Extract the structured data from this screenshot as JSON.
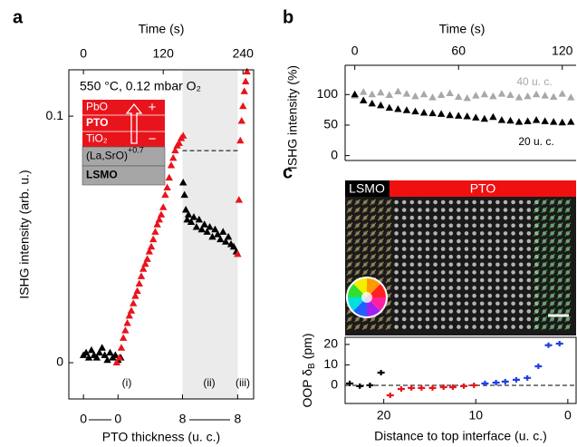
{
  "panel_labels": [
    "a",
    "b",
    "c"
  ],
  "micrograph": {
    "labels": [
      "LSMO",
      "PTO"
    ]
  },
  "chart_data": [
    {
      "type": "scatter",
      "xlabel": "Time (s)",
      "x2label": "PTO thickness (u. c.)",
      "ylabel": "ISHG intensity (arb. u.)",
      "xlim": [
        -22,
        256
      ],
      "xticks": [
        0,
        120,
        240
      ],
      "x2ticks": [
        {
          "value": 0,
          "label": "0"
        },
        {
          "value": 52,
          "label": "0"
        },
        {
          "value": 149,
          "label": "8"
        },
        {
          "value": 232,
          "label": "8"
        }
      ],
      "ylim": [
        -0.0147,
        0.1188
      ],
      "yticks": [
        0,
        0.1
      ],
      "marker": "triangle",
      "annotations": [
        "550 °C, 0.12 mbar O₂",
        "(i)",
        "(ii)",
        "(iii)"
      ],
      "shaded_region": [
        149,
        232
      ],
      "reference_line": {
        "value": 0.086,
        "xrange": [
          149,
          232
        ]
      },
      "layer_stack": [
        "PbO",
        "PTO",
        "TiO₂",
        "(La,SrO)",
        "LSMO"
      ],
      "layer_stack_sup": "+0.7",
      "polarization_signs": [
        "+",
        "−"
      ],
      "series": [
        {
          "color": "#000000",
          "x": [
            0,
            4,
            8,
            12,
            16,
            20,
            24,
            28,
            32,
            36,
            40,
            44,
            48,
            52,
            56,
            150,
            152,
            154,
            156,
            158,
            162,
            166,
            170,
            174,
            178,
            182,
            186,
            190,
            194,
            198,
            202,
            206,
            210,
            214,
            218,
            222,
            226,
            230
          ],
          "values": [
            0.003,
            0.004,
            0.002,
            0.005,
            0.003,
            0.002,
            0.004,
            0.006,
            0.003,
            0.001,
            0.004,
            0.002,
            0.003,
            0.001,
            0.002,
            0.073,
            0.068,
            0.062,
            0.058,
            0.06,
            0.057,
            0.059,
            0.055,
            0.058,
            0.054,
            0.056,
            0.053,
            0.055,
            0.051,
            0.054,
            0.052,
            0.05,
            0.053,
            0.049,
            0.051,
            0.048,
            0.047,
            0.045
          ]
        },
        {
          "color": "#e8141c",
          "x": [
            50,
            54,
            57,
            60,
            63,
            66,
            69,
            72,
            75,
            78,
            81,
            84,
            87,
            90,
            93,
            96,
            99,
            102,
            105,
            108,
            111,
            114,
            117,
            120,
            123,
            126,
            129,
            132,
            135,
            138,
            141,
            144,
            147,
            150,
            232,
            234,
            236,
            238,
            240,
            242,
            244,
            246
          ],
          "values": [
            0.0,
            0.002,
            0.006,
            0.01,
            0.013,
            0.016,
            0.019,
            0.021,
            0.024,
            0.027,
            0.029,
            0.032,
            0.035,
            0.038,
            0.04,
            0.042,
            0.045,
            0.047,
            0.05,
            0.053,
            0.056,
            0.058,
            0.06,
            0.063,
            0.068,
            0.071,
            0.075,
            0.08,
            0.083,
            0.086,
            0.088,
            0.089,
            0.091,
            0.092,
            0.044,
            0.066,
            0.09,
            0.098,
            0.104,
            0.11,
            0.114,
            0.118
          ]
        }
      ]
    },
    {
      "type": "line",
      "xlabel": "Time (s)",
      "ylabel": "ISHG intensity (%)",
      "marker": "triangle",
      "x": [
        0,
        5,
        10,
        15,
        20,
        25,
        30,
        35,
        40,
        45,
        50,
        55,
        60,
        65,
        70,
        75,
        80,
        85,
        90,
        95,
        100,
        105,
        110,
        115,
        120,
        125
      ],
      "xlim": [
        -5.6,
        128
      ],
      "xticks": [
        0,
        60,
        120
      ],
      "ylim": [
        -8,
        148
      ],
      "yticks": [
        0,
        50,
        100
      ],
      "series": [
        {
          "name": "40 u. c.",
          "color": "#a8a8a8",
          "values": [
            98,
            104,
            100,
            103,
            99,
            105,
            101,
            97,
            100,
            95,
            99,
            102,
            96,
            94,
            98,
            100,
            97,
            101,
            99,
            95,
            97,
            100,
            98,
            96,
            101,
            95
          ]
        },
        {
          "name": "20 u. c.",
          "color": "#000000",
          "values": [
            100,
            90,
            85,
            82,
            78,
            76,
            74,
            72,
            70,
            69,
            68,
            66,
            65,
            64,
            62,
            60,
            63,
            58,
            57,
            55,
            56,
            58,
            56,
            55,
            54,
            55
          ]
        }
      ]
    },
    {
      "type": "scatter",
      "xlabel": "Distance to top interface (u. c.)",
      "ylabel_parts": [
        "OOP δ",
        "B",
        "(pm)"
      ],
      "xlim": [
        24.2,
        -0.9
      ],
      "xticks": [
        20,
        10,
        0
      ],
      "ylim": [
        -8.9,
        23.5
      ],
      "yticks": [
        0,
        10,
        20
      ],
      "marker": "plus",
      "zero_line": true,
      "series": [
        {
          "color": "#000000",
          "x": [
            23.7,
            22.6,
            21.5,
            20.3
          ],
          "values": [
            0.9,
            -0.4,
            0,
            6.2
          ]
        },
        {
          "color": "#e8141c",
          "x": [
            19.3,
            18.1,
            17.0,
            15.9,
            14.7,
            13.5,
            12.5,
            11.3,
            10.2
          ],
          "values": [
            -4.9,
            -1.8,
            -1.3,
            -1.3,
            -1.3,
            -0.9,
            -0.9,
            -0.4,
            0
          ]
        },
        {
          "color": "#1f3fe0",
          "x": [
            9.0,
            7.8,
            6.8,
            5.6,
            4.4,
            3.2,
            2.1,
            0.9
          ],
          "values": [
            0.9,
            1.3,
            1.8,
            2.7,
            3.6,
            9.3,
            19.6,
            20.4
          ]
        }
      ]
    }
  ]
}
